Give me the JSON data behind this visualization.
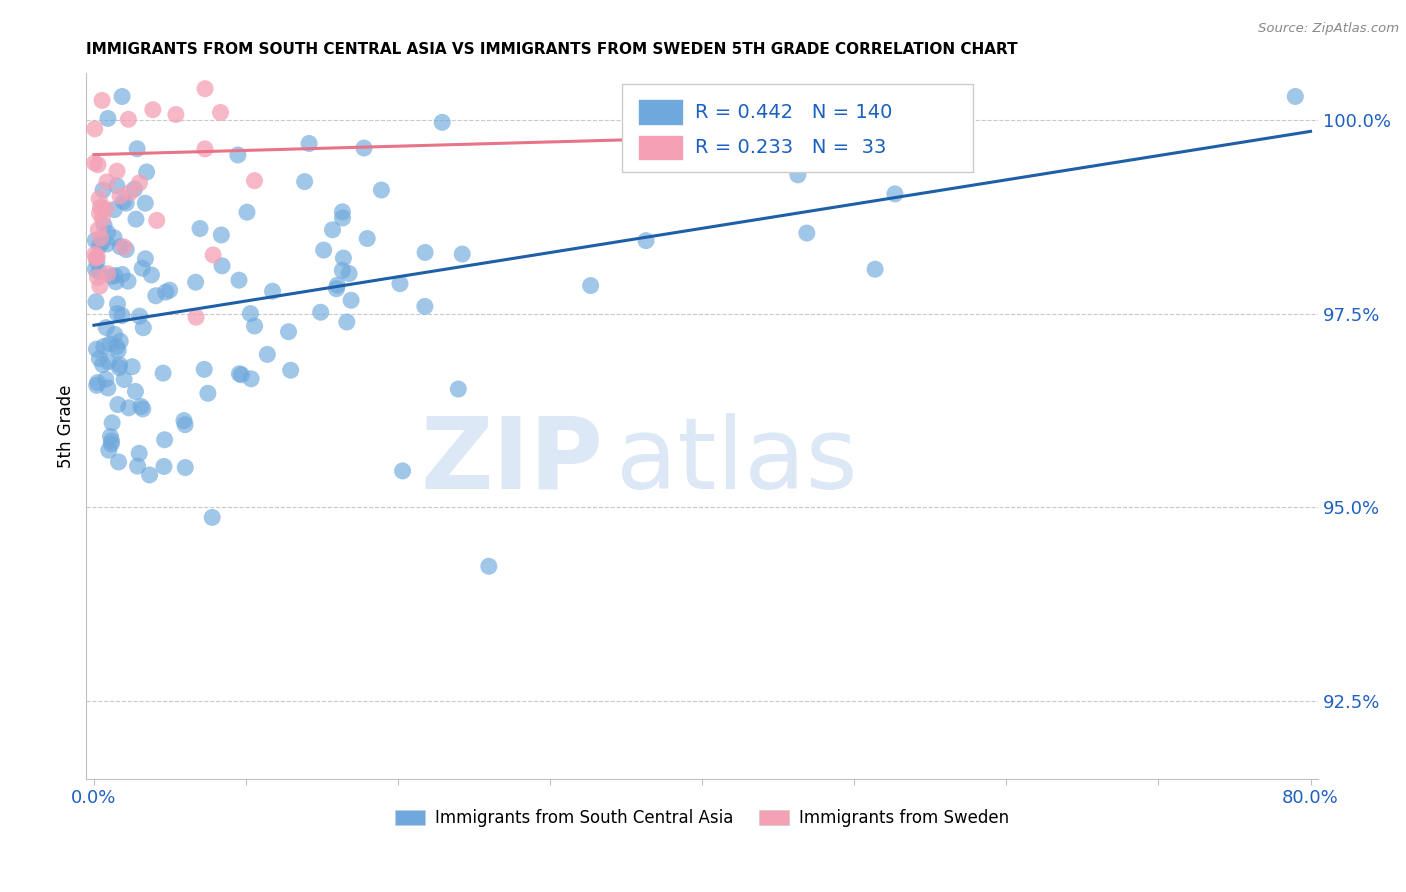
{
  "title": "IMMIGRANTS FROM SOUTH CENTRAL ASIA VS IMMIGRANTS FROM SWEDEN 5TH GRADE CORRELATION CHART",
  "source": "Source: ZipAtlas.com",
  "ylabel": "5th Grade",
  "xlim_min": 0.0,
  "xlim_max": 80.0,
  "ylim_min": 91.5,
  "ylim_max": 100.6,
  "x_tick_positions": [
    0,
    10,
    20,
    30,
    40,
    50,
    60,
    70,
    80
  ],
  "x_tick_labels": [
    "0.0%",
    "",
    "",
    "",
    "",
    "",
    "",
    "",
    "80.0%"
  ],
  "y_tick_positions": [
    92.5,
    95.0,
    97.5,
    100.0
  ],
  "y_tick_labels": [
    "92.5%",
    "95.0%",
    "97.5%",
    "100.0%"
  ],
  "blue_R": 0.442,
  "blue_N": 140,
  "pink_R": 0.233,
  "pink_N": 33,
  "blue_color": "#6ea8dc",
  "pink_color": "#f4a0b5",
  "blue_line_color": "#1e5fa8",
  "pink_line_color": "#e8748a",
  "legend_label_blue": "Immigrants from South Central Asia",
  "legend_label_pink": "Immigrants from Sweden",
  "blue_line_x0": 0.0,
  "blue_line_y0": 97.35,
  "blue_line_x1": 80.0,
  "blue_line_y1": 99.85,
  "pink_line_x0": 0.0,
  "pink_line_y0": 99.55,
  "pink_line_x1": 55.0,
  "pink_line_y1": 99.85
}
